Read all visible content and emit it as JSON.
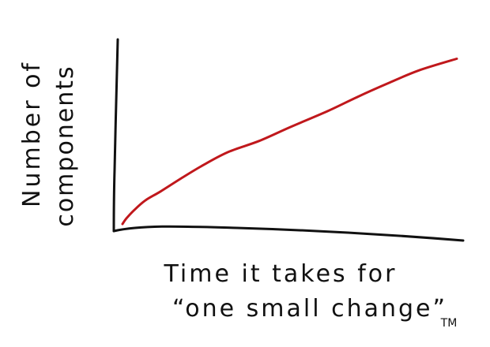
{
  "chart_data": {
    "type": "line",
    "title": "",
    "xlabel_line1": "Time it takes for",
    "xlabel_line2": "“one small change”",
    "xlabel_mark": "TM",
    "ylabel_line1": "Number of",
    "ylabel_line2": "components",
    "grid": false,
    "legend": "none",
    "colors": {
      "axis": "#111111",
      "series": "#c0181c"
    },
    "series": [
      {
        "x": [
          0,
          0.5,
          1.5,
          3,
          5,
          8,
          11,
          14,
          18,
          22,
          27,
          31,
          35,
          39,
          44
        ],
        "y": [
          0,
          0.6,
          1.5,
          2.6,
          3.6,
          5.2,
          6.7,
          8.0,
          9.2,
          10.7,
          12.5,
          14.1,
          15.6,
          17.0,
          18.3
        ]
      }
    ],
    "xlim": [
      0,
      44
    ],
    "ylim": [
      0,
      20
    ]
  }
}
